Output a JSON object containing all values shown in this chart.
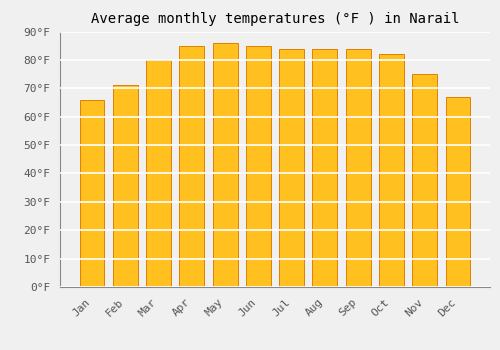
{
  "title": "Average monthly temperatures (°F ) in Narail",
  "categories": [
    "Jan",
    "Feb",
    "Mar",
    "Apr",
    "May",
    "Jun",
    "Jul",
    "Aug",
    "Sep",
    "Oct",
    "Nov",
    "Dec"
  ],
  "values": [
    66,
    71,
    80,
    85,
    86,
    85,
    84,
    84,
    84,
    82,
    75,
    67
  ],
  "bar_color": "#FFC020",
  "bar_edge_color": "#E08000",
  "ylim": [
    0,
    90
  ],
  "yticks": [
    0,
    10,
    20,
    30,
    40,
    50,
    60,
    70,
    80,
    90
  ],
  "ytick_labels": [
    "0°F",
    "10°F",
    "20°F",
    "30°F",
    "40°F",
    "50°F",
    "60°F",
    "70°F",
    "80°F",
    "90°F"
  ],
  "background_color": "#F0F0F0",
  "grid_color": "#FFFFFF",
  "title_fontsize": 10,
  "tick_fontsize": 8,
  "font_family": "monospace",
  "bar_width": 0.75
}
